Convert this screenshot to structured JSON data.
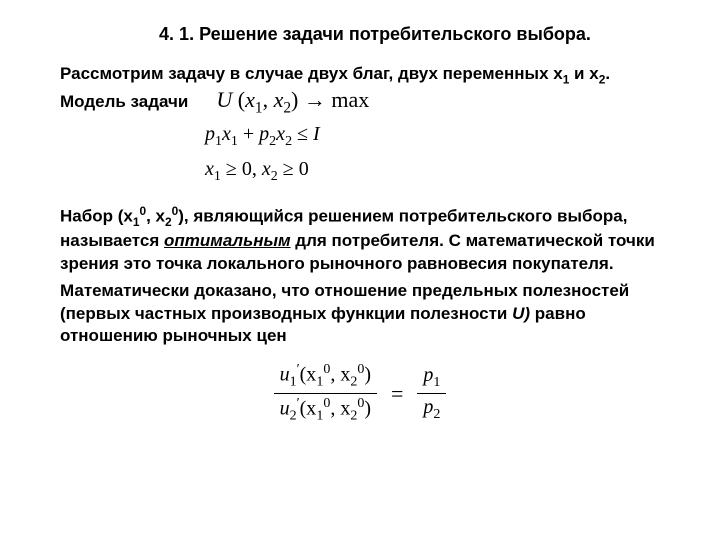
{
  "title": "4. 1. Решение задачи потребительского выбора.",
  "intro_line1": "Рассмотрим задачу в случае двух благ, двух переменных x",
  "intro_sub1": "1",
  "intro_and": " и x",
  "intro_sub2": "2",
  "intro_end": ".",
  "model_label": "Модель задачи",
  "formulas": {
    "obj_U": "U",
    "obj_open": " (",
    "obj_x1": "x",
    "obj_s1": "1",
    "obj_comma": ", ",
    "obj_x2": "x",
    "obj_s2": "2",
    "obj_close": ") → ",
    "obj_max": "max",
    "c1_p1": "p",
    "c1_s1": "1",
    "c1_x1": "x",
    "c1_xs1": "1",
    "c1_plus": " + ",
    "c1_p2": "p",
    "c1_s2": "2",
    "c1_x2": "x",
    "c1_xs2": "2",
    "c1_le": " ≤ ",
    "c1_I": "I",
    "c2_x1": "x",
    "c2_s1": "1",
    "c2_ge1": " ≥ 0, ",
    "c2_x2": "x",
    "c2_s2": "2",
    "c2_ge2": " ≥ 0"
  },
  "body": {
    "nabor": "Набор (x",
    "n_s1": "1",
    "n_sup0a": "0",
    "n_comma": ", x",
    "n_s2": "2",
    "n_sup0b": "0",
    "n_close": "), являющийся решением потребительского выбора,",
    "line2a": "называется  ",
    "line2_ital": "оптимальным",
    "line2b": " для потребителя. С математической",
    "line3": "точки зрения это  точка локального рыночного равновесия покупателя.",
    "line5": "Математически доказано, что отношение предельных полезностей (первых частных производных функции полезности ",
    "line5_u": "U)",
    "line5_end": " равно отношению рыночных цен"
  },
  "ratio": {
    "u1": "u",
    "u1_sub": "1",
    "u1_prime": "′",
    "args_open": "(x",
    "arg1_sub": "1",
    "arg_sup0": "0",
    "args_mid": ", x",
    "arg2_sub": "2",
    "args_close": ")",
    "u2": "u",
    "u2_sub": "2",
    "eq": "=",
    "p": "p",
    "p1_sub": "1",
    "p2_sub": "2"
  },
  "colors": {
    "bg": "#ffffff",
    "text": "#000000"
  }
}
